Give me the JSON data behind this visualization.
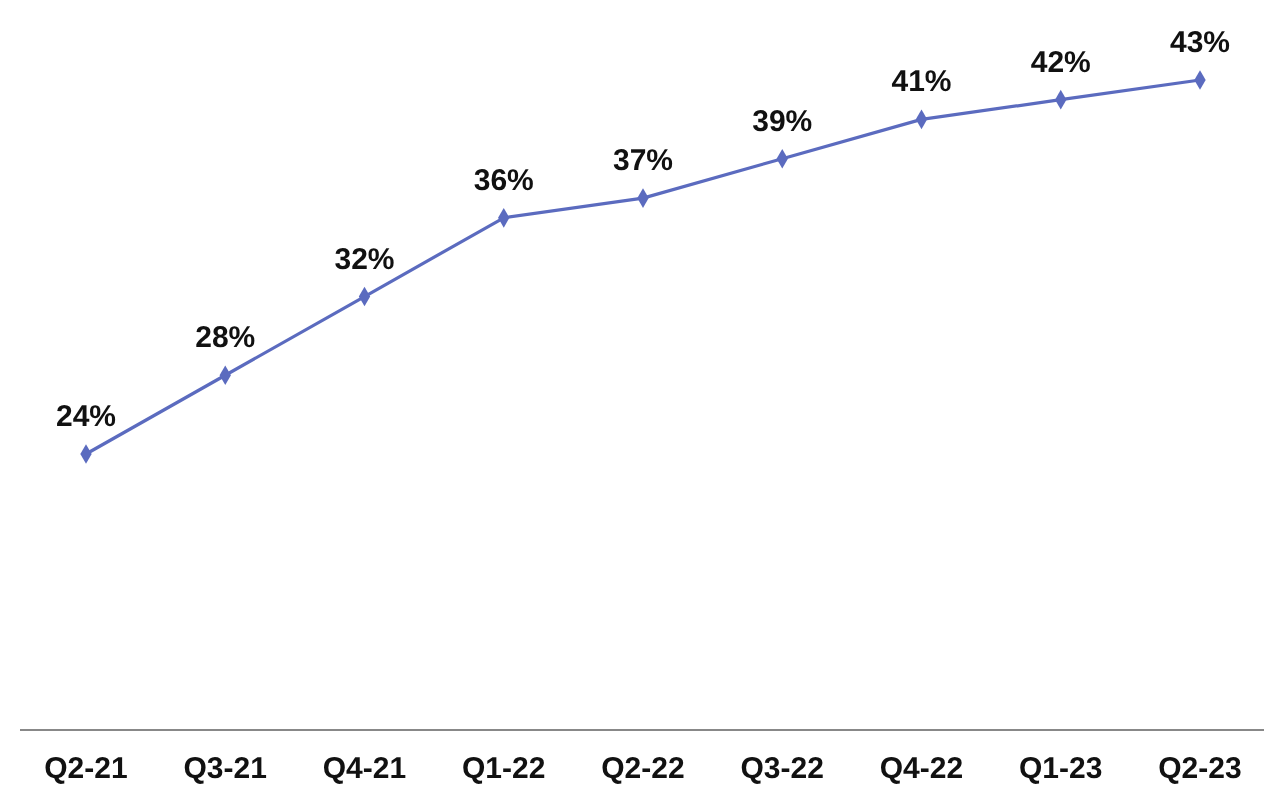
{
  "chart_data": {
    "type": "line",
    "categories": [
      "Q2-21",
      "Q3-21",
      "Q4-21",
      "Q1-22",
      "Q2-22",
      "Q3-22",
      "Q4-22",
      "Q1-23",
      "Q2-23"
    ],
    "series": [
      {
        "color": "#5b6bbf",
        "values": [
          24,
          28,
          32,
          36,
          37,
          39,
          41,
          42,
          43
        ],
        "value_labels": [
          "24%",
          "28%",
          "32%",
          "36%",
          "37%",
          "39%",
          "41%",
          "42%",
          "43%"
        ]
      }
    ],
    "marker": "diamond",
    "line_style": "solid"
  }
}
